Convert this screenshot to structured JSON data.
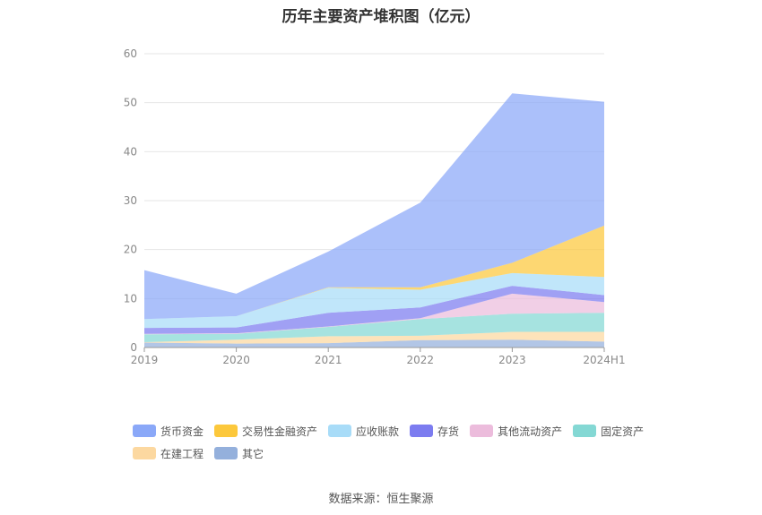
{
  "title": "历年主要资产堆积图（亿元）",
  "source": "数据来源：恒生聚源",
  "colors": {
    "货币资金": "#8aa8f8",
    "交易性金融资产": "#fcc83c",
    "应收账款": "#a8dcf8",
    "存货": "#7c7cf0",
    "其他流动资产": "#ecbcdc",
    "固定资产": "#84d8d4",
    "在建工程": "#fcd8a0",
    "其它": "#94b0dc"
  },
  "chart_data": {
    "type": "area",
    "stacked": true,
    "title": "历年主要资产堆积图（亿元）",
    "x": [
      "2019",
      "2020",
      "2021",
      "2022",
      "2023",
      "2024H1"
    ],
    "ylim": [
      0,
      60
    ],
    "yticks": [
      0,
      10,
      20,
      30,
      40,
      50,
      60
    ],
    "grid": true,
    "legend_position": "bottom",
    "series": [
      {
        "name": "其它",
        "values": [
          1.0,
          0.8,
          0.9,
          1.5,
          1.6,
          1.2
        ]
      },
      {
        "name": "在建工程",
        "values": [
          0.1,
          0.8,
          1.4,
          0.9,
          1.6,
          2.0
        ]
      },
      {
        "name": "固定资产",
        "values": [
          1.6,
          1.2,
          1.9,
          3.4,
          3.7,
          3.9
        ]
      },
      {
        "name": "其他流动资产",
        "values": [
          0.1,
          0.1,
          0.1,
          0.2,
          4.1,
          2.2
        ]
      },
      {
        "name": "存货",
        "values": [
          1.2,
          1.2,
          2.8,
          2.2,
          1.6,
          1.4
        ]
      },
      {
        "name": "应收账款",
        "values": [
          1.8,
          2.3,
          5.1,
          3.6,
          2.6,
          3.7
        ]
      },
      {
        "name": "交易性金融资产",
        "values": [
          0.0,
          0.0,
          0.1,
          0.5,
          2.1,
          10.5
        ]
      },
      {
        "name": "货币资金",
        "values": [
          10.0,
          4.6,
          7.3,
          17.3,
          34.6,
          25.3
        ]
      }
    ]
  },
  "legend": [
    {
      "label": "货币资金",
      "color": "#8aa8f8"
    },
    {
      "label": "交易性金融资产",
      "color": "#fcc83c"
    },
    {
      "label": "应收账款",
      "color": "#a8dcf8"
    },
    {
      "label": "存货",
      "color": "#7c7cf0"
    },
    {
      "label": "其他流动资产",
      "color": "#ecbcdc"
    },
    {
      "label": "固定资产",
      "color": "#84d8d4"
    },
    {
      "label": "在建工程",
      "color": "#fcd8a0"
    },
    {
      "label": "其它",
      "color": "#94b0dc"
    }
  ]
}
